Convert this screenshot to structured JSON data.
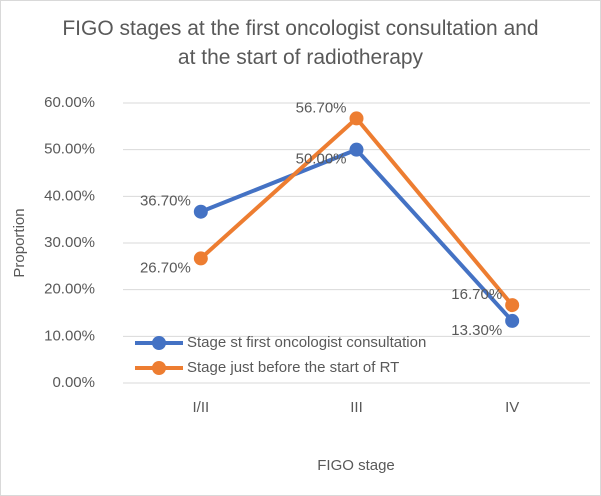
{
  "chart_data": {
    "type": "line",
    "title": "FIGO stages at the first oncologist consultation and at the start of radiotherapy",
    "x_label": "FIGO stage",
    "y_label": "Proportion",
    "categories": [
      "I/II",
      "III",
      "IV"
    ],
    "series": [
      {
        "name": "Stage st first oncologist consultation",
        "color": "#4472c4",
        "values": [
          36.7,
          50,
          13.3
        ],
        "value_labels": [
          "36.70%",
          "50.00%",
          "13.30%"
        ]
      },
      {
        "name": "Stage just before the start of RT",
        "color": "#ed7d31",
        "values": [
          26.7,
          56.7,
          16.7
        ],
        "value_labels": [
          "26.70%",
          "56.70%",
          "16.70%"
        ]
      }
    ],
    "ylim": [
      0,
      60
    ],
    "yticks": [
      {
        "value": 0,
        "label": "0.00%"
      },
      {
        "value": 10,
        "label": "10.00%"
      },
      {
        "value": 20,
        "label": "20.00%"
      },
      {
        "value": 30,
        "label": "30.00%"
      },
      {
        "value": 40,
        "label": "40.00%"
      },
      {
        "value": 50,
        "label": "50.00%"
      },
      {
        "value": 60,
        "label": "60.00%"
      }
    ],
    "grid": true,
    "legend": "lower-left"
  }
}
